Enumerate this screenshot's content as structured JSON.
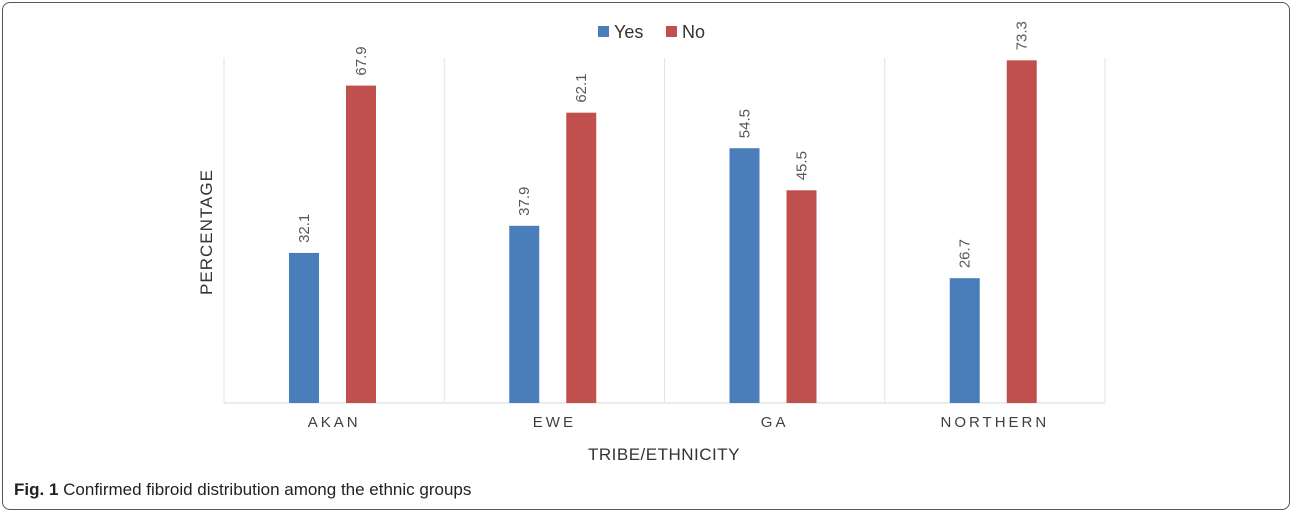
{
  "chart_data": {
    "type": "bar",
    "title": "",
    "xlabel": "TRIBE/ETHNICITY",
    "ylabel": "PERCENTAGE",
    "categories": [
      "AKAN",
      "EWE",
      "GA",
      "NORTHERN"
    ],
    "series": [
      {
        "name": "Yes",
        "color": "#4a7ebb",
        "values": [
          32.1,
          37.9,
          54.5,
          26.7
        ]
      },
      {
        "name": "No",
        "color": "#c0504d",
        "values": [
          67.9,
          62.1,
          45.5,
          73.3
        ]
      }
    ],
    "ylim": [
      0,
      80
    ],
    "grid": "vertical-category-separators",
    "legend": "top-center"
  },
  "caption": {
    "label": "Fig. 1",
    "text": "Confirmed fibroid distribution among the ethnic groups"
  }
}
